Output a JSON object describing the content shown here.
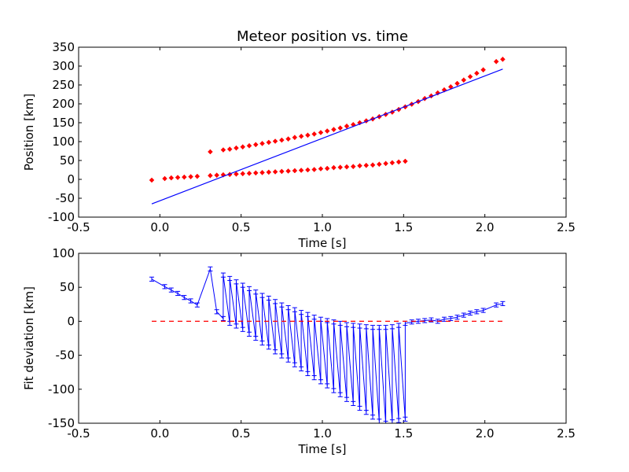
{
  "chart_data": [
    {
      "type": "scatter",
      "title": "Meteor position vs. time",
      "xlabel": "Time [s]",
      "ylabel": "Position [km]",
      "xlim": [
        -0.5,
        2.5
      ],
      "ylim": [
        -100,
        350
      ],
      "xticks": [
        "-0.5",
        "0.0",
        "0.5",
        "1.0",
        "1.5",
        "2.0",
        "2.5"
      ],
      "yticks": [
        "-100",
        "-50",
        "0",
        "50",
        "100",
        "150",
        "200",
        "250",
        "300",
        "350"
      ],
      "xtick_values": [
        -0.5,
        0.0,
        0.5,
        1.0,
        1.5,
        2.0,
        2.5
      ],
      "ytick_values": [
        -100,
        -50,
        0,
        50,
        100,
        150,
        200,
        250,
        300,
        350
      ],
      "grid": false,
      "marker_color": "#ff0000",
      "line_color": "#0000ff",
      "series": [
        {
          "kind": "points",
          "x": [
            -0.05,
            0.03,
            0.07,
            0.11,
            0.15,
            0.19,
            0.23,
            0.31,
            0.35,
            0.39,
            0.43,
            0.47,
            0.51,
            0.55,
            0.59,
            0.63,
            0.67,
            0.71,
            0.75,
            0.79,
            0.83,
            0.87,
            0.91,
            0.95,
            0.99,
            1.03,
            1.07,
            1.11,
            1.15,
            1.19,
            1.23,
            1.27,
            1.31,
            1.35,
            1.39,
            1.43,
            1.47,
            1.51,
            0.31,
            0.39,
            0.43,
            0.47,
            0.51,
            0.55,
            0.59,
            0.63,
            0.67,
            0.71,
            0.75,
            0.79,
            0.83,
            0.87,
            0.91,
            0.95,
            0.99,
            1.03,
            1.07,
            1.11,
            1.15,
            1.19,
            1.23,
            1.27,
            1.31,
            1.35,
            1.39,
            1.43,
            1.47,
            1.51,
            1.55,
            1.59,
            1.63,
            1.67,
            1.71,
            1.75,
            1.79,
            1.83,
            1.87,
            1.91,
            1.95,
            1.99,
            2.07,
            2.11
          ],
          "y": [
            -2,
            2,
            4,
            5,
            6,
            7,
            8,
            10,
            11,
            12,
            13,
            14,
            15,
            16,
            17,
            18,
            19,
            20,
            21,
            22,
            23,
            24,
            25,
            26,
            28,
            29,
            31,
            32,
            33,
            34,
            36,
            37,
            38,
            40,
            42,
            44,
            46,
            48,
            73,
            78,
            80,
            83,
            86,
            89,
            92,
            95,
            98,
            101,
            104,
            107,
            111,
            114,
            117,
            120,
            124,
            128,
            132,
            136,
            141,
            145,
            150,
            155,
            160,
            166,
            172,
            178,
            185,
            192,
            199,
            206,
            214,
            221,
            229,
            237,
            245,
            254,
            263,
            272,
            281,
            290,
            312,
            318
          ]
        },
        {
          "kind": "line",
          "x": [
            -0.05,
            2.11
          ],
          "y": [
            -65,
            292
          ]
        }
      ]
    },
    {
      "type": "line",
      "title": "",
      "xlabel": "Time [s]",
      "ylabel": "Fit deviation [km]",
      "xlim": [
        -0.5,
        2.5
      ],
      "ylim": [
        -150,
        100
      ],
      "xticks": [
        "-0.5",
        "0.0",
        "0.5",
        "1.0",
        "1.5",
        "2.0",
        "2.5"
      ],
      "yticks": [
        "-150",
        "-100",
        "-50",
        "0",
        "50",
        "100"
      ],
      "xtick_values": [
        -0.5,
        0.0,
        0.5,
        1.0,
        1.5,
        2.0,
        2.5
      ],
      "ytick_values": [
        -150,
        -100,
        -50,
        0,
        50,
        100
      ],
      "grid": false,
      "line_color": "#0000ff",
      "reference_color": "#ff0000",
      "series": [
        {
          "kind": "errorline",
          "x": [
            -0.05,
            0.03,
            0.07,
            0.11,
            0.15,
            0.19,
            0.23,
            0.31,
            0.35,
            0.39,
            0.39,
            0.43,
            0.43,
            0.47,
            0.47,
            0.51,
            0.51,
            0.55,
            0.55,
            0.59,
            0.59,
            0.63,
            0.63,
            0.67,
            0.67,
            0.71,
            0.71,
            0.75,
            0.75,
            0.79,
            0.79,
            0.83,
            0.83,
            0.87,
            0.87,
            0.91,
            0.91,
            0.95,
            0.95,
            0.99,
            0.99,
            1.03,
            1.03,
            1.07,
            1.07,
            1.11,
            1.11,
            1.15,
            1.15,
            1.19,
            1.19,
            1.23,
            1.23,
            1.27,
            1.27,
            1.31,
            1.31,
            1.35,
            1.35,
            1.39,
            1.39,
            1.43,
            1.43,
            1.47,
            1.47,
            1.51,
            1.51,
            1.55,
            1.59,
            1.63,
            1.67,
            1.71,
            1.75,
            1.79,
            1.83,
            1.87,
            1.91,
            1.95,
            1.99,
            2.07,
            2.11
          ],
          "y": [
            62,
            51,
            46,
            41,
            35,
            30,
            24,
            77,
            14,
            4,
            68,
            -3,
            63,
            -7,
            58,
            -12,
            53,
            -19,
            48,
            -25,
            43,
            -32,
            38,
            -38,
            34,
            -45,
            29,
            -51,
            24,
            -57,
            20,
            -64,
            17,
            -70,
            13,
            -77,
            10,
            -83,
            6,
            -89,
            3,
            -95,
            1,
            -102,
            -1,
            -108,
            -3,
            -115,
            -5,
            -121,
            -6,
            -128,
            -7,
            -134,
            -8,
            -141,
            -9,
            -147,
            -9,
            -150,
            -9,
            -148,
            -8,
            -146,
            -6,
            -144,
            -3,
            -1,
            0,
            1,
            2,
            0,
            3,
            4,
            6,
            9,
            12,
            14,
            16,
            24,
            26
          ],
          "yerr": 3
        },
        {
          "kind": "reference",
          "x": [
            -0.05,
            2.11
          ],
          "y": [
            0,
            0
          ]
        }
      ]
    }
  ]
}
